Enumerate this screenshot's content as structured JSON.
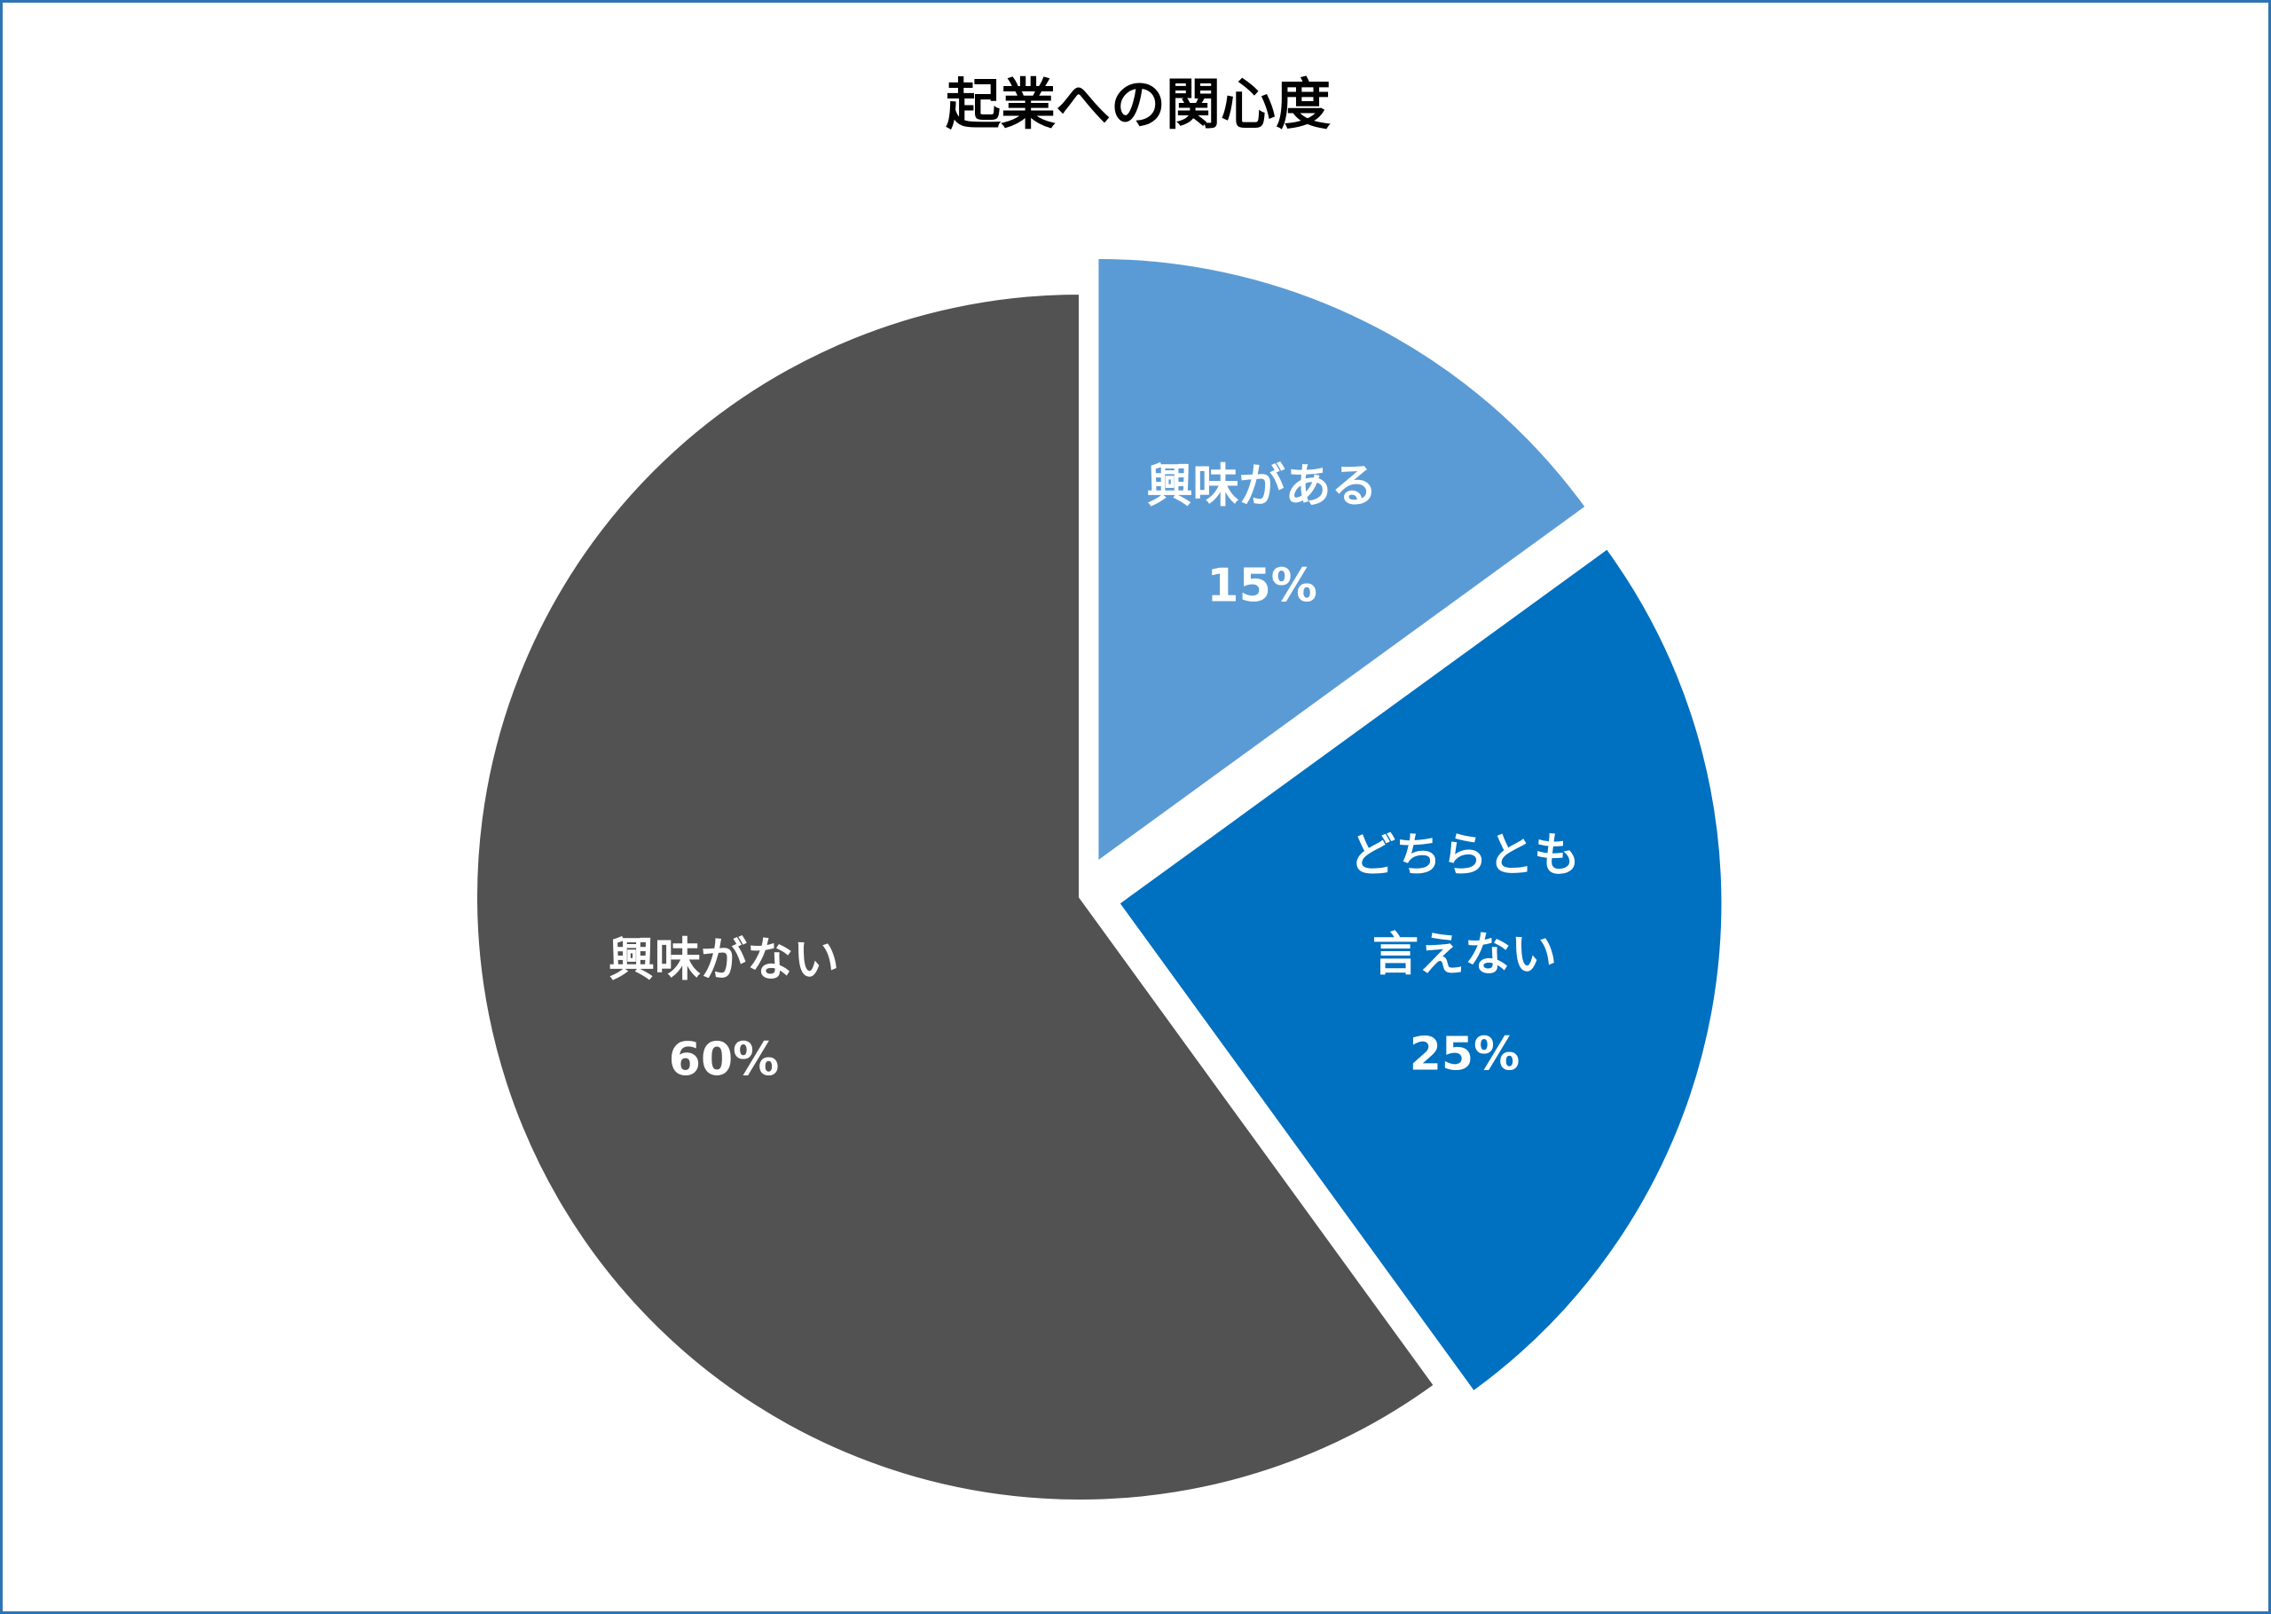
{
  "chart_data": {
    "type": "pie",
    "title": "起業への関心度",
    "slices": [
      {
        "label_lines": [
          "興味がある"
        ],
        "value": 15,
        "value_label": "15%",
        "color": "#5b9bd5",
        "exploded": true
      },
      {
        "label_lines": [
          "どちらとも",
          "言えない"
        ],
        "value": 25,
        "value_label": "25%",
        "color": "#0070c0",
        "exploded": true
      },
      {
        "label_lines": [
          "興味がない"
        ],
        "value": 60,
        "value_label": "60%",
        "color": "#525252",
        "exploded": false
      }
    ],
    "start_angle": "12 o'clock",
    "direction": "clockwise",
    "legend": "none",
    "data_labels": "inside"
  }
}
